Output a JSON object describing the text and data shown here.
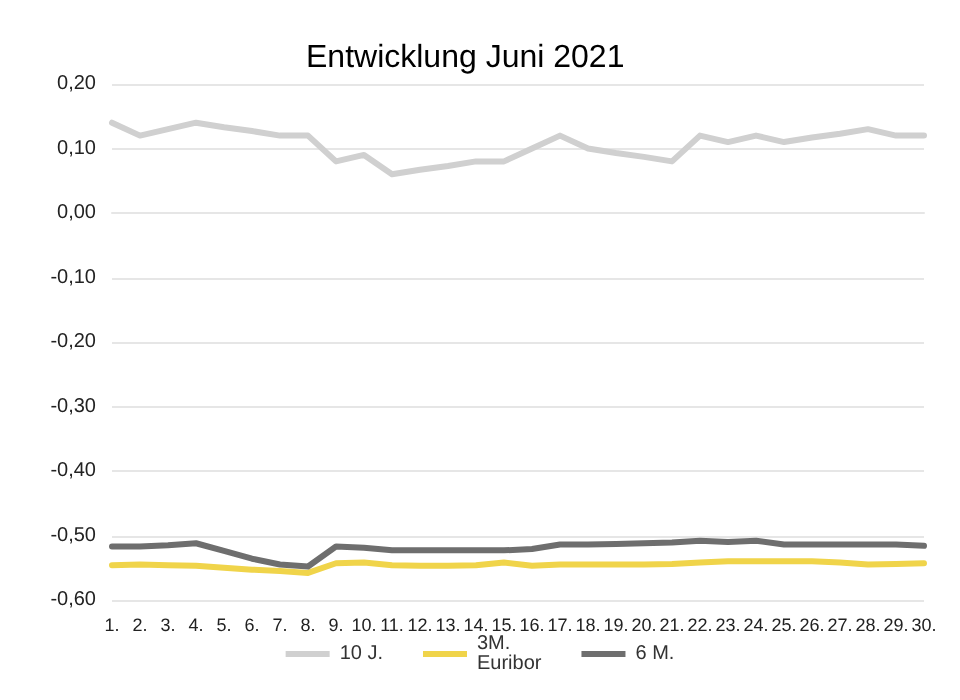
{
  "chart_data": {
    "type": "line",
    "title": "Entwicklung Juni 2021",
    "categories": [
      "1.",
      "2.",
      "3.",
      "4.",
      "5.",
      "6.",
      "7.",
      "8.",
      "9.",
      "10.",
      "11.",
      "12.",
      "13.",
      "14.",
      "15.",
      "16.",
      "17.",
      "18.",
      "19.",
      "20.",
      "21.",
      "22.",
      "23.",
      "24.",
      "25.",
      "26.",
      "27.",
      "28.",
      "29.",
      "30."
    ],
    "series": [
      {
        "name": "10 J.",
        "color": "#d0d0d0",
        "values": [
          0.14,
          0.12,
          0.13,
          0.14,
          0.133,
          0.127,
          0.12,
          0.12,
          0.08,
          0.09,
          0.06,
          0.067,
          0.073,
          0.08,
          0.08,
          0.1,
          0.12,
          0.1,
          0.093,
          0.087,
          0.08,
          0.12,
          0.11,
          0.12,
          0.11,
          0.117,
          0.123,
          0.13,
          0.12,
          0.12
        ]
      },
      {
        "name": "3M.\nEuribor",
        "color": "#f0d44a",
        "values": [
          -0.546,
          -0.545,
          -0.546,
          -0.547,
          -0.55,
          -0.553,
          -0.555,
          -0.558,
          -0.543,
          -0.542,
          -0.546,
          -0.547,
          -0.547,
          -0.546,
          -0.542,
          -0.547,
          -0.545,
          -0.545,
          -0.545,
          -0.545,
          -0.544,
          -0.542,
          -0.54,
          -0.54,
          -0.54,
          -0.54,
          -0.542,
          -0.545,
          -0.544,
          -0.543
        ]
      },
      {
        "name": "6 M.",
        "color": "#6e6e6e",
        "values": [
          -0.517,
          -0.517,
          -0.515,
          -0.512,
          -0.524,
          -0.536,
          -0.545,
          -0.548,
          -0.517,
          -0.519,
          -0.523,
          -0.523,
          -0.523,
          -0.523,
          -0.523,
          -0.521,
          -0.514,
          -0.514,
          -0.513,
          -0.512,
          -0.511,
          -0.508,
          -0.51,
          -0.508,
          -0.514,
          -0.514,
          -0.514,
          -0.514,
          -0.514,
          -0.516
        ]
      }
    ],
    "ylim": [
      -0.6,
      0.2
    ],
    "yticks": [
      {
        "value": -0.6,
        "label": "-0,60"
      },
      {
        "value": -0.5,
        "label": "-0,50"
      },
      {
        "value": -0.4,
        "label": "-0,40"
      },
      {
        "value": -0.3,
        "label": "-0,30"
      },
      {
        "value": -0.2,
        "label": "-0,20"
      },
      {
        "value": -0.1,
        "label": "-0,10"
      },
      {
        "value": 0,
        "label": "0,00"
      },
      {
        "value": 0.1,
        "label": "0,10"
      },
      {
        "value": 0.2,
        "label": "0,20"
      }
    ],
    "grid": "y",
    "legend": "bottom",
    "marker": "none",
    "line_style": "solid"
  }
}
